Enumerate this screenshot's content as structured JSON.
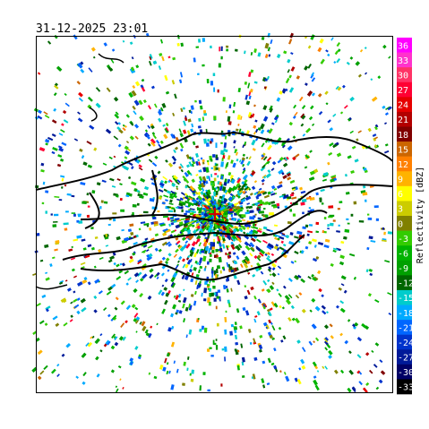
{
  "timestamp": "31-12-2025 23:01",
  "colorbar": {
    "title": "Reflectivity [dBZ]",
    "entries": [
      {
        "label": "36",
        "color": "#ff00ff"
      },
      {
        "label": "33",
        "color": "#ff33cc"
      },
      {
        "label": "30",
        "color": "#ff3366"
      },
      {
        "label": "27",
        "color": "#ff0033"
      },
      {
        "label": "24",
        "color": "#e60000"
      },
      {
        "label": "21",
        "color": "#b30000"
      },
      {
        "label": "18",
        "color": "#800000"
      },
      {
        "label": "15",
        "color": "#cc6600"
      },
      {
        "label": "12",
        "color": "#ff8000"
      },
      {
        "label": "9",
        "color": "#ffb300"
      },
      {
        "label": "6",
        "color": "#ffff00"
      },
      {
        "label": "3",
        "color": "#cccc00"
      },
      {
        "label": "0",
        "color": "#808000"
      },
      {
        "label": "-3",
        "color": "#33cc00"
      },
      {
        "label": "-6",
        "color": "#00b300"
      },
      {
        "label": "-9",
        "color": "#00a000"
      },
      {
        "label": "-12",
        "color": "#006600"
      },
      {
        "label": "-15",
        "color": "#00cccc"
      },
      {
        "label": "-18",
        "color": "#00aaff"
      },
      {
        "label": "-21",
        "color": "#0066ff"
      },
      {
        "label": "-24",
        "color": "#0033cc"
      },
      {
        "label": "-27",
        "color": "#001a99"
      },
      {
        "label": "-30",
        "color": "#000066"
      },
      {
        "label": "-33",
        "color": "#000000"
      }
    ]
  }
}
